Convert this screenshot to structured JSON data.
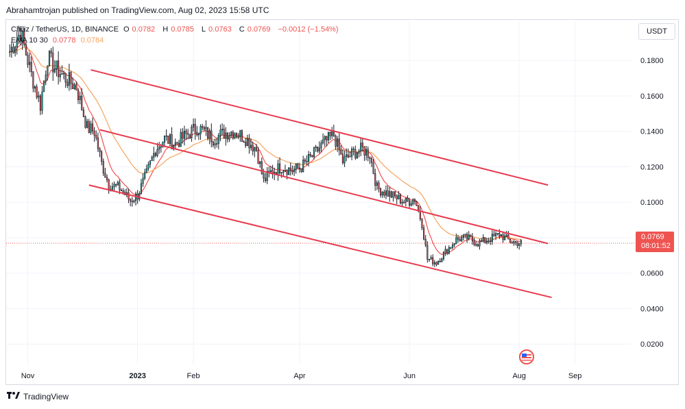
{
  "header": {
    "publisher_text": "Abrahamtrojan published on TradingView.com, Aug 02, 2023 15:58 UTC"
  },
  "legend": {
    "symbol": "Chiliz / TetherUS, 1D, BINANCE",
    "o_label": "O",
    "o_value": "0.0782",
    "h_label": "H",
    "h_value": "0.0785",
    "l_label": "L",
    "l_value": "0.0763",
    "c_label": "C",
    "c_value": "0.0769",
    "change": "−0.0012 (−1.54%)",
    "ema_label": "EMA 10 30",
    "ema_fast_value": "0.0778",
    "ema_slow_value": "0.0784"
  },
  "currency": "USDT",
  "price_tag": {
    "price": "0.0769",
    "countdown": "08:01:52"
  },
  "footer": {
    "brand": "TradingView"
  },
  "colors": {
    "up": "#26a69a",
    "down": "#ef5350",
    "candle": "#131722",
    "channel": "#e8394d",
    "ema_fast": "#ef5350",
    "ema_slow": "#f7a35c",
    "grid": "#f0f3fa"
  },
  "chart_data": {
    "type": "candlestick",
    "y_axis_ticks": [
      "0.1800",
      "0.1600",
      "0.1400",
      "0.1200",
      "0.1000",
      "0.0800",
      "0.0600",
      "0.0400",
      "0.0200"
    ],
    "y_axis_values": [
      0.18,
      0.16,
      0.14,
      0.12,
      0.1,
      0.08,
      0.06,
      0.04,
      0.02
    ],
    "ylim": [
      0.0085,
      0.2025
    ],
    "x_axis_labels": [
      "Nov",
      "2023",
      "Feb",
      "Apr",
      "Jun",
      "Aug",
      "Sep"
    ],
    "x_axis_dates": [
      "2022-11-01",
      "2023-01-01",
      "2023-02-01",
      "2023-04-01",
      "2023-06-01",
      "2023-08-01",
      "2023-09-01"
    ],
    "xlim": [
      "2022-10-20",
      "2023-10-02"
    ],
    "price_path": [
      [
        "2022-10-22",
        0.185
      ],
      [
        "2022-10-28",
        0.196
      ],
      [
        "2022-11-03",
        0.172
      ],
      [
        "2022-11-08",
        0.155
      ],
      [
        "2022-11-12",
        0.182
      ],
      [
        "2022-11-16",
        0.176
      ],
      [
        "2022-11-22",
        0.17
      ],
      [
        "2022-11-28",
        0.165
      ],
      [
        "2022-12-04",
        0.142
      ],
      [
        "2022-12-08",
        0.14
      ],
      [
        "2022-12-12",
        0.122
      ],
      [
        "2022-12-16",
        0.11
      ],
      [
        "2022-12-22",
        0.108
      ],
      [
        "2022-12-28",
        0.101
      ],
      [
        "2023-01-01",
        0.104
      ],
      [
        "2023-01-06",
        0.116
      ],
      [
        "2023-01-11",
        0.13
      ],
      [
        "2023-01-16",
        0.136
      ],
      [
        "2023-01-22",
        0.133
      ],
      [
        "2023-01-28",
        0.138
      ],
      [
        "2023-02-03",
        0.142
      ],
      [
        "2023-02-07",
        0.14
      ],
      [
        "2023-02-12",
        0.136
      ],
      [
        "2023-02-18",
        0.139
      ],
      [
        "2023-02-24",
        0.14
      ],
      [
        "2023-03-02",
        0.136
      ],
      [
        "2023-03-08",
        0.13
      ],
      [
        "2023-03-12",
        0.112
      ],
      [
        "2023-03-16",
        0.117
      ],
      [
        "2023-03-22",
        0.12
      ],
      [
        "2023-03-28",
        0.118
      ],
      [
        "2023-04-02",
        0.12
      ],
      [
        "2023-04-08",
        0.126
      ],
      [
        "2023-04-14",
        0.133
      ],
      [
        "2023-04-20",
        0.138
      ],
      [
        "2023-04-25",
        0.123
      ],
      [
        "2023-05-01",
        0.128
      ],
      [
        "2023-05-06",
        0.13
      ],
      [
        "2023-05-10",
        0.127
      ],
      [
        "2023-05-14",
        0.108
      ],
      [
        "2023-05-18",
        0.106
      ],
      [
        "2023-05-24",
        0.103
      ],
      [
        "2023-05-30",
        0.1
      ],
      [
        "2023-06-04",
        0.102
      ],
      [
        "2023-06-08",
        0.088
      ],
      [
        "2023-06-11",
        0.068
      ],
      [
        "2023-06-16",
        0.066
      ],
      [
        "2023-06-21",
        0.072
      ],
      [
        "2023-06-27",
        0.079
      ],
      [
        "2023-07-03",
        0.08
      ],
      [
        "2023-07-09",
        0.077
      ],
      [
        "2023-07-15",
        0.079
      ],
      [
        "2023-07-21",
        0.082
      ],
      [
        "2023-07-27",
        0.078
      ],
      [
        "2023-08-02",
        0.0769
      ]
    ],
    "price_line": 0.0769,
    "trendlines": [
      {
        "name": "channel-upper",
        "from": [
          "2022-12-06",
          0.1747
        ],
        "to": [
          "2023-08-17",
          0.1097
        ]
      },
      {
        "name": "channel-middle",
        "from": [
          "2022-12-11",
          0.1409
        ],
        "to": [
          "2023-08-17",
          0.0767
        ]
      },
      {
        "name": "channel-lower",
        "from": [
          "2022-12-05",
          0.1097
        ],
        "to": [
          "2023-08-19",
          0.0463
        ]
      }
    ]
  }
}
